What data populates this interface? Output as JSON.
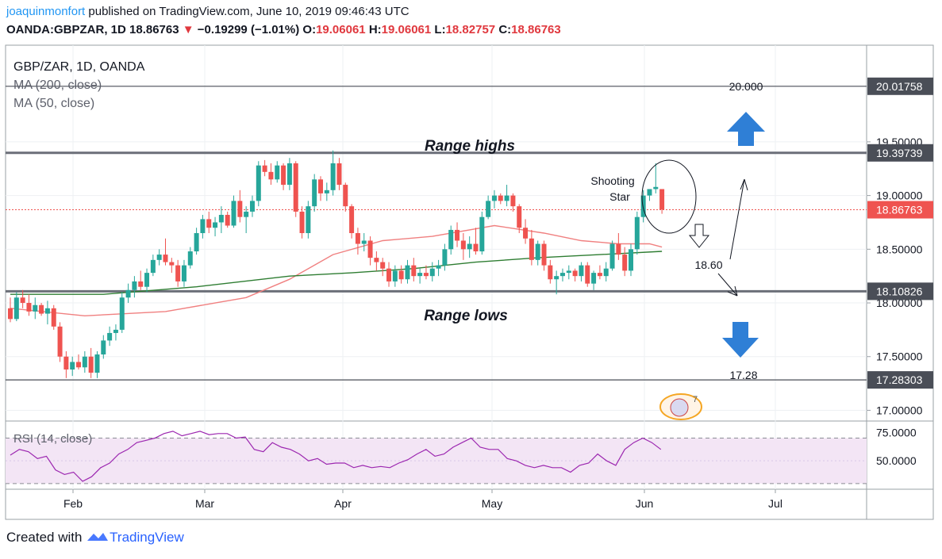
{
  "header": {
    "author": "joaquinmonfort",
    "published": "published on TradingView.com, June 10, 2019 09:46:43 UTC",
    "symbol": "OANDA:GBPZAR, 1D",
    "last": "18.86763",
    "change_arrow": "▼",
    "change": "−0.19299 (−1.01%)",
    "o_label": "O:",
    "o_value": "19.06061",
    "h_label": "H:",
    "h_value": "19.06061",
    "l_label": "L:",
    "l_value": "18.82757",
    "c_label": "C:",
    "c_value": "18.86763"
  },
  "legend": {
    "title": "GBP/ZAR, 1D, OANDA",
    "ma200": "MA (200, close)",
    "ma50": "MA (50, close)"
  },
  "annotations": {
    "range_highs": "Range highs",
    "range_lows": "Range lows",
    "shooting_star_1": "Shooting",
    "shooting_star_2": "Star",
    "target_up": "20.000",
    "target_mid": "18.60",
    "target_down": "17.28"
  },
  "colors": {
    "up": "#26a69a",
    "down": "#ef5350",
    "ma200": "#2e7d32",
    "ma50": "#f08080",
    "rsi_line": "#9c27b0",
    "rsi_band": "#f3e5f5",
    "arrow": "#2f7fd6",
    "last_price_label": "#ef5350"
  },
  "footer": {
    "created": "Created with",
    "brand": "TradingView"
  },
  "chart_data": [
    {
      "type": "candlestick",
      "title": "GBP/ZAR, 1D, OANDA",
      "ylim": [
        16.9,
        20.4
      ],
      "y_ticks": [
        "19.50000",
        "19.00000",
        "18.50000",
        "18.00000",
        "17.50000",
        "17.00000"
      ],
      "x_ticks": [
        "Feb",
        "Mar",
        "Apr",
        "May",
        "Jun",
        "Jul"
      ],
      "price_labels": [
        {
          "value": 20.01758,
          "text": "20.01758",
          "style": "dark"
        },
        {
          "value": 19.39739,
          "text": "19.39739",
          "style": "dark"
        },
        {
          "value": 18.86763,
          "text": "18.86763",
          "style": "red"
        },
        {
          "value": 18.10826,
          "text": "18.10826",
          "style": "dark"
        },
        {
          "value": 17.28303,
          "text": "17.28303",
          "style": "dark"
        }
      ],
      "horizontal_lines": [
        {
          "name": "target-20",
          "value": 20.01758
        },
        {
          "name": "range-high",
          "value": 19.39739
        },
        {
          "name": "range-low",
          "value": 18.10826
        },
        {
          "name": "target-17",
          "value": 17.28303
        }
      ],
      "last_price": 18.86763,
      "start_date": "2019-01-21",
      "candles": [
        [
          17.95,
          18.05,
          17.82,
          17.85
        ],
        [
          17.85,
          18.1,
          17.83,
          18.05
        ],
        [
          18.05,
          18.12,
          17.95,
          18.0
        ],
        [
          18.0,
          18.08,
          17.88,
          17.92
        ],
        [
          17.92,
          18.05,
          17.85,
          17.98
        ],
        [
          17.98,
          18.0,
          17.88,
          17.9
        ],
        [
          17.9,
          18.02,
          17.8,
          17.95
        ],
        [
          17.95,
          17.98,
          17.75,
          17.78
        ],
        [
          17.78,
          17.82,
          17.45,
          17.5
        ],
        [
          17.5,
          17.55,
          17.3,
          17.38
        ],
        [
          17.38,
          17.5,
          17.32,
          17.45
        ],
        [
          17.45,
          17.52,
          17.38,
          17.4
        ],
        [
          17.4,
          17.55,
          17.35,
          17.5
        ],
        [
          17.5,
          17.58,
          17.3,
          17.35
        ],
        [
          17.35,
          17.55,
          17.3,
          17.52
        ],
        [
          17.52,
          17.7,
          17.48,
          17.65
        ],
        [
          17.65,
          17.78,
          17.6,
          17.72
        ],
        [
          17.72,
          17.8,
          17.65,
          17.75
        ],
        [
          17.75,
          18.1,
          17.72,
          18.05
        ],
        [
          18.05,
          18.18,
          18.0,
          18.12
        ],
        [
          18.12,
          18.25,
          18.05,
          18.2
        ],
        [
          18.2,
          18.3,
          18.12,
          18.15
        ],
        [
          18.15,
          18.32,
          18.1,
          18.28
        ],
        [
          18.28,
          18.45,
          18.25,
          18.4
        ],
        [
          18.4,
          18.5,
          18.35,
          18.45
        ],
        [
          18.45,
          18.6,
          18.35,
          18.38
        ],
        [
          18.38,
          18.42,
          18.28,
          18.35
        ],
        [
          18.35,
          18.4,
          18.15,
          18.2
        ],
        [
          18.2,
          18.4,
          18.15,
          18.35
        ],
        [
          18.35,
          18.52,
          18.32,
          18.48
        ],
        [
          18.48,
          18.7,
          18.45,
          18.65
        ],
        [
          18.65,
          18.82,
          18.6,
          18.78
        ],
        [
          18.78,
          18.85,
          18.65,
          18.7
        ],
        [
          18.7,
          18.8,
          18.62,
          18.75
        ],
        [
          18.75,
          18.9,
          18.65,
          18.82
        ],
        [
          18.82,
          18.85,
          18.7,
          18.72
        ],
        [
          18.72,
          19.0,
          18.7,
          18.95
        ],
        [
          18.95,
          19.05,
          18.75,
          18.8
        ],
        [
          18.8,
          18.9,
          18.65,
          18.85
        ],
        [
          18.85,
          19.0,
          18.8,
          18.95
        ],
        [
          18.95,
          19.32,
          18.9,
          19.28
        ],
        [
          19.28,
          19.33,
          19.18,
          19.22
        ],
        [
          19.22,
          19.3,
          19.1,
          19.15
        ],
        [
          19.15,
          19.32,
          19.12,
          19.28
        ],
        [
          19.28,
          19.3,
          19.05,
          19.1
        ],
        [
          19.1,
          19.35,
          19.05,
          19.3
        ],
        [
          19.3,
          19.32,
          18.8,
          18.85
        ],
        [
          18.85,
          18.9,
          18.6,
          18.65
        ],
        [
          18.65,
          18.95,
          18.6,
          18.9
        ],
        [
          18.9,
          19.2,
          18.85,
          19.15
        ],
        [
          19.15,
          19.18,
          18.95,
          19.02
        ],
        [
          19.02,
          19.12,
          18.95,
          19.05
        ],
        [
          19.05,
          19.42,
          19.0,
          19.3
        ],
        [
          19.3,
          19.35,
          19.05,
          19.1
        ],
        [
          19.1,
          19.12,
          18.85,
          18.9
        ],
        [
          18.9,
          18.92,
          18.6,
          18.65
        ],
        [
          18.65,
          18.7,
          18.45,
          18.55
        ],
        [
          18.55,
          18.65,
          18.48,
          18.58
        ],
        [
          18.58,
          18.62,
          18.35,
          18.42
        ],
        [
          18.42,
          18.48,
          18.3,
          18.38
        ],
        [
          18.38,
          18.42,
          18.25,
          18.32
        ],
        [
          18.32,
          18.38,
          18.15,
          18.2
        ],
        [
          18.2,
          18.35,
          18.15,
          18.3
        ],
        [
          18.3,
          18.35,
          18.18,
          18.22
        ],
        [
          18.22,
          18.4,
          18.18,
          18.35
        ],
        [
          18.35,
          18.42,
          18.2,
          18.25
        ],
        [
          18.25,
          18.32,
          18.18,
          18.28
        ],
        [
          18.28,
          18.35,
          18.22,
          18.25
        ],
        [
          18.25,
          18.38,
          18.2,
          18.32
        ],
        [
          18.32,
          18.4,
          18.25,
          18.35
        ],
        [
          18.35,
          18.55,
          18.3,
          18.5
        ],
        [
          18.5,
          18.72,
          18.45,
          18.68
        ],
        [
          18.68,
          18.75,
          18.52,
          18.58
        ],
        [
          18.58,
          18.65,
          18.4,
          18.5
        ],
        [
          18.5,
          18.62,
          18.42,
          18.55
        ],
        [
          18.55,
          18.7,
          18.45,
          18.48
        ],
        [
          18.48,
          18.85,
          18.45,
          18.8
        ],
        [
          18.8,
          19.0,
          18.78,
          18.95
        ],
        [
          18.95,
          19.05,
          18.88,
          19.0
        ],
        [
          19.0,
          19.02,
          18.92,
          18.95
        ],
        [
          18.95,
          19.1,
          18.9,
          19.0
        ],
        [
          19.0,
          19.02,
          18.85,
          18.9
        ],
        [
          18.9,
          18.92,
          18.65,
          18.7
        ],
        [
          18.7,
          18.78,
          18.55,
          18.6
        ],
        [
          18.6,
          18.68,
          18.35,
          18.4
        ],
        [
          18.4,
          18.58,
          18.35,
          18.55
        ],
        [
          18.55,
          18.58,
          18.3,
          18.35
        ],
        [
          18.35,
          18.4,
          18.18,
          18.22
        ],
        [
          18.22,
          18.3,
          18.08,
          18.25
        ],
        [
          18.25,
          18.32,
          18.2,
          18.28
        ],
        [
          18.28,
          18.35,
          18.22,
          18.3
        ],
        [
          18.3,
          18.32,
          18.2,
          18.25
        ],
        [
          18.25,
          18.38,
          18.2,
          18.35
        ],
        [
          18.35,
          18.38,
          18.15,
          18.18
        ],
        [
          18.18,
          18.3,
          18.12,
          18.28
        ],
        [
          18.28,
          18.35,
          18.22,
          18.25
        ],
        [
          18.25,
          18.38,
          18.2,
          18.32
        ],
        [
          18.32,
          18.58,
          18.3,
          18.55
        ],
        [
          18.55,
          18.65,
          18.4,
          18.45
        ],
        [
          18.45,
          18.52,
          18.25,
          18.3
        ],
        [
          18.3,
          18.55,
          18.25,
          18.5
        ],
        [
          18.5,
          18.85,
          18.45,
          18.8
        ],
        [
          18.8,
          19.05,
          18.75,
          19.0
        ],
        [
          19.0,
          19.05,
          18.95,
          19.06
        ],
        [
          19.06,
          19.3,
          19.02,
          19.08
        ],
        [
          19.06,
          19.06,
          18.83,
          18.87
        ]
      ],
      "ma50": [
        [
          0,
          17.95
        ],
        [
          12,
          17.88
        ],
        [
          25,
          17.92
        ],
        [
          38,
          18.05
        ],
        [
          45,
          18.22
        ],
        [
          52,
          18.45
        ],
        [
          60,
          18.58
        ],
        [
          68,
          18.62
        ],
        [
          78,
          18.72
        ],
        [
          86,
          18.65
        ],
        [
          92,
          18.58
        ],
        [
          98,
          18.55
        ],
        [
          103,
          18.55
        ],
        [
          105,
          18.52
        ]
      ],
      "ma200": [
        [
          0,
          18.08
        ],
        [
          15,
          18.08
        ],
        [
          30,
          18.15
        ],
        [
          45,
          18.25
        ],
        [
          55,
          18.28
        ],
        [
          65,
          18.32
        ],
        [
          75,
          18.38
        ],
        [
          85,
          18.42
        ],
        [
          95,
          18.45
        ],
        [
          105,
          18.48
        ]
      ]
    },
    {
      "type": "line",
      "title": "RSI (14, close)",
      "ylim": [
        25,
        85
      ],
      "y_ticks": [
        "75.0000",
        "50.0000"
      ],
      "bands": [
        30,
        70
      ],
      "values": [
        [
          0,
          55
        ],
        [
          2,
          60
        ],
        [
          4,
          58
        ],
        [
          6,
          52
        ],
        [
          8,
          54
        ],
        [
          10,
          42
        ],
        [
          12,
          38
        ],
        [
          14,
          40
        ],
        [
          16,
          32
        ],
        [
          18,
          36
        ],
        [
          20,
          44
        ],
        [
          22,
          48
        ],
        [
          24,
          56
        ],
        [
          26,
          60
        ],
        [
          28,
          66
        ],
        [
          30,
          68
        ],
        [
          32,
          70
        ],
        [
          34,
          74
        ],
        [
          36,
          76
        ],
        [
          38,
          72
        ],
        [
          40,
          74
        ],
        [
          42,
          76
        ],
        [
          44,
          73
        ],
        [
          46,
          74
        ],
        [
          48,
          74
        ],
        [
          50,
          70
        ],
        [
          52,
          71
        ],
        [
          54,
          60
        ],
        [
          56,
          58
        ],
        [
          58,
          66
        ],
        [
          60,
          62
        ],
        [
          62,
          60
        ],
        [
          64,
          56
        ],
        [
          66,
          50
        ],
        [
          68,
          52
        ],
        [
          70,
          47
        ],
        [
          72,
          48
        ],
        [
          74,
          48
        ],
        [
          76,
          44
        ],
        [
          78,
          46
        ],
        [
          80,
          44
        ],
        [
          82,
          45
        ],
        [
          84,
          44
        ],
        [
          86,
          48
        ],
        [
          88,
          51
        ],
        [
          90,
          56
        ],
        [
          92,
          60
        ],
        [
          94,
          54
        ],
        [
          96,
          56
        ],
        [
          98,
          62
        ],
        [
          100,
          66
        ],
        [
          102,
          70
        ],
        [
          104,
          62
        ],
        [
          106,
          60
        ],
        [
          108,
          60
        ],
        [
          110,
          52
        ],
        [
          112,
          50
        ],
        [
          114,
          46
        ],
        [
          116,
          44
        ],
        [
          118,
          46
        ],
        [
          120,
          44
        ],
        [
          122,
          44
        ],
        [
          124,
          40
        ],
        [
          126,
          46
        ],
        [
          128,
          48
        ],
        [
          130,
          56
        ],
        [
          132,
          50
        ],
        [
          134,
          46
        ],
        [
          136,
          60
        ],
        [
          138,
          66
        ],
        [
          140,
          70
        ],
        [
          142,
          66
        ],
        [
          144,
          60
        ]
      ],
      "last": 60
    }
  ]
}
